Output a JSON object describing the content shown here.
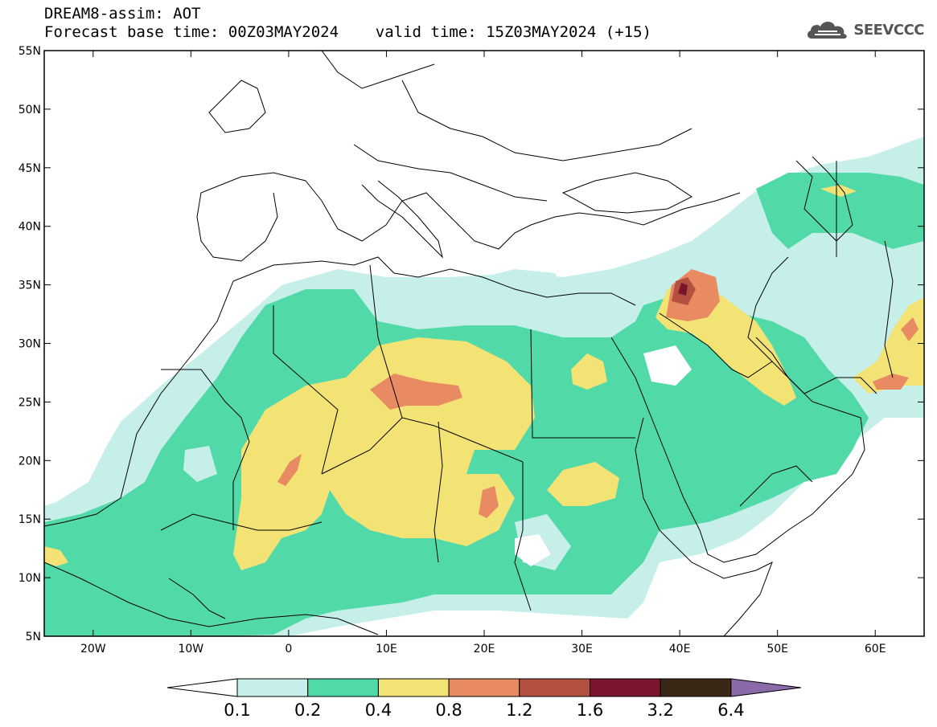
{
  "header": {
    "line1": "DREAM8-assim: AOT",
    "line2": "Forecast base time: 00Z03MAY2024    valid time: 15Z03MAY2024 (+15)"
  },
  "logo": {
    "icon": "cloud-icon",
    "text": "SEEVCCC"
  },
  "map": {
    "lon_range": [
      -25,
      65
    ],
    "lat_range": [
      5,
      55
    ],
    "lat_ticks": [
      "5N",
      "10N",
      "15N",
      "20N",
      "25N",
      "30N",
      "35N",
      "40N",
      "45N",
      "50N",
      "55N"
    ],
    "lon_ticks": [
      "20W",
      "10W",
      "0",
      "10E",
      "20E",
      "30E",
      "40E",
      "50E",
      "60E"
    ]
  },
  "colorbar": {
    "labels": [
      "0.1",
      "0.2",
      "0.4",
      "0.8",
      "1.2",
      "1.6",
      "3.2",
      "6.4"
    ],
    "colors": [
      "#c6efe9",
      "#52d9a8",
      "#f3e375",
      "#e88b63",
      "#b3503f",
      "#7a1530",
      "#3b2716",
      "#8a6aa8"
    ],
    "below_color": "#ffffff"
  }
}
